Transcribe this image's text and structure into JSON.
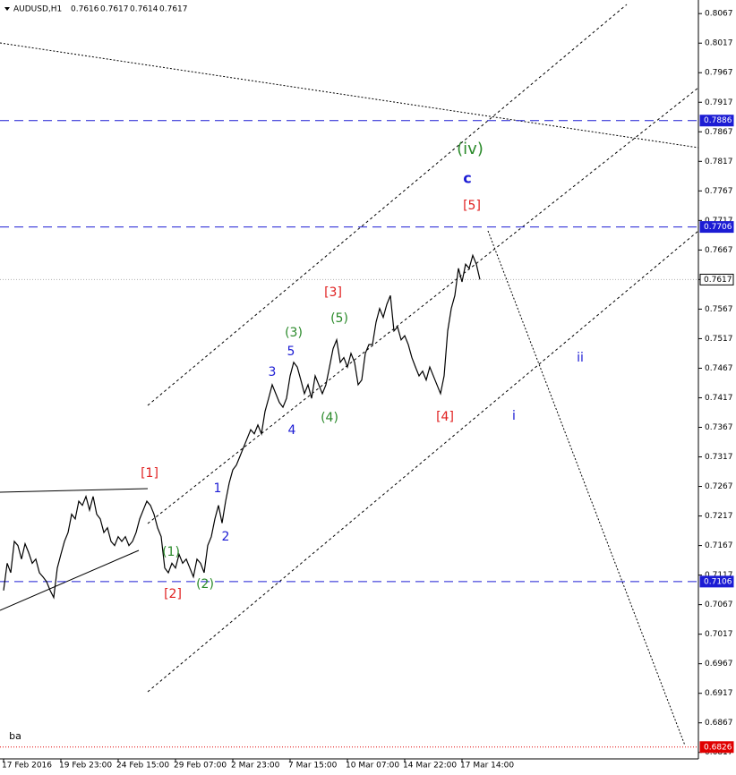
{
  "header": {
    "symbol": "AUDUSD,H1",
    "ohlc": [
      0.7616,
      0.7617,
      0.7614,
      0.7617
    ]
  },
  "chart_data": {
    "type": "line",
    "color": "#000000",
    "values": [
      0.7091,
      0.7137,
      0.7121,
      0.7174,
      0.7167,
      0.7144,
      0.717,
      0.7155,
      0.7137,
      0.7144,
      0.7121,
      0.7114,
      0.7106,
      0.7091,
      0.7079,
      0.7129,
      0.7152,
      0.7174,
      0.7189,
      0.722,
      0.7212,
      0.7242,
      0.7235,
      0.725,
      0.7227,
      0.725,
      0.722,
      0.7212,
      0.7189,
      0.7197,
      0.7174,
      0.7167,
      0.7182,
      0.7174,
      0.7182,
      0.7167,
      0.7174,
      0.7189,
      0.7212,
      0.7227,
      0.7242,
      0.7235,
      0.722,
      0.7197,
      0.7182,
      0.7129,
      0.7121,
      0.7137,
      0.7129,
      0.7152,
      0.7137,
      0.7144,
      0.7129,
      0.7114,
      0.7144,
      0.7137,
      0.7121,
      0.7167,
      0.7182,
      0.7212,
      0.7235,
      0.7205,
      0.7242,
      0.7273,
      0.7295,
      0.7303,
      0.7318,
      0.7333,
      0.7348,
      0.7363,
      0.7356,
      0.7371,
      0.7356,
      0.7394,
      0.7416,
      0.7439,
      0.7424,
      0.7409,
      0.7401,
      0.7416,
      0.7454,
      0.7477,
      0.7469,
      0.7447,
      0.7424,
      0.7439,
      0.7416,
      0.7454,
      0.7439,
      0.7424,
      0.7439,
      0.7469,
      0.75,
      0.7515,
      0.7477,
      0.7485,
      0.7469,
      0.7492,
      0.7477,
      0.7439,
      0.7447,
      0.7492,
      0.7507,
      0.7507,
      0.7545,
      0.7568,
      0.7553,
      0.7575,
      0.759,
      0.753,
      0.7537,
      0.7515,
      0.7522,
      0.7507,
      0.7485,
      0.7469,
      0.7454,
      0.7462,
      0.7447,
      0.7469,
      0.7454,
      0.7439,
      0.7424,
      0.7454,
      0.753,
      0.7568,
      0.759,
      0.7636,
      0.7613,
      0.7643,
      0.7636,
      0.7658,
      0.7643,
      0.7617
    ],
    "xlim": [
      -1,
      194
    ],
    "xticks": [
      {
        "value": 0,
        "label": "17 Feb 2016"
      },
      {
        "value": 16,
        "label": "19 Feb 23:00"
      },
      {
        "value": 32,
        "label": "24 Feb 15:00"
      },
      {
        "value": 48,
        "label": "29 Feb 07:00"
      },
      {
        "value": 64,
        "label": "2 Mar 23:00"
      },
      {
        "value": 80,
        "label": "7 Mar 15:00"
      },
      {
        "value": 96,
        "label": "10 Mar 07:00"
      },
      {
        "value": 112,
        "label": "14 Mar 22:00"
      },
      {
        "value": 128,
        "label": "17 Mar 14:00"
      }
    ],
    "ylim": [
      0.6806,
      0.809
    ],
    "yticks": [
      0.8067,
      0.8017,
      0.7967,
      0.7917,
      0.7867,
      0.7817,
      0.7767,
      0.7717,
      0.7667,
      0.7617,
      0.7567,
      0.7517,
      0.7467,
      0.7417,
      0.7367,
      0.7317,
      0.7267,
      0.7217,
      0.7167,
      0.7117,
      0.7067,
      0.7017,
      0.6967,
      0.6917,
      0.6867,
      0.6817
    ],
    "levels": [
      {
        "value": 0.7886,
        "color": "#1c1cd4",
        "style": "dashed",
        "label_color": "#ffffff"
      },
      {
        "value": 0.7706,
        "color": "#1c1cd4",
        "style": "dashed",
        "label_color": "#ffffff"
      },
      {
        "value": 0.7617,
        "color": "#b0b0b0",
        "style": "dotted",
        "label_color": "#000000"
      },
      {
        "value": 0.7106,
        "color": "#1c1cd4",
        "style": "dashed",
        "label_color": "#ffffff"
      },
      {
        "value": 0.6826,
        "color": "#e00000",
        "style": "dotted",
        "label_color": "#ffffff"
      }
    ],
    "annotations": [
      {
        "text": "[1]",
        "color": "#e02020"
      },
      {
        "text": "[2]",
        "color": "#e02020"
      },
      {
        "text": "[3]",
        "color": "#e02020"
      },
      {
        "text": "[4]",
        "color": "#e02020"
      },
      {
        "text": "[5]",
        "color": "#e02020"
      },
      {
        "text": "(1)",
        "color": "#2a8a2a"
      },
      {
        "text": "(2)",
        "color": "#2a8a2a"
      },
      {
        "text": "(3)",
        "color": "#2a8a2a"
      },
      {
        "text": "(4)",
        "color": "#2a8a2a"
      },
      {
        "text": "(5)",
        "color": "#2a8a2a"
      },
      {
        "text": "(iv)",
        "color": "#2a8a2a"
      },
      {
        "text": "1",
        "color": "#1c1cd4"
      },
      {
        "text": "2",
        "color": "#1c1cd4"
      },
      {
        "text": "3",
        "color": "#1c1cd4"
      },
      {
        "text": "4",
        "color": "#1c1cd4"
      },
      {
        "text": "5",
        "color": "#1c1cd4"
      },
      {
        "text": "c",
        "color": "#1c1cd4"
      },
      {
        "text": "i",
        "color": "#1c1cd4"
      },
      {
        "text": "ii",
        "color": "#1c1cd4"
      },
      {
        "text": "ba",
        "color": "#000000"
      }
    ]
  }
}
